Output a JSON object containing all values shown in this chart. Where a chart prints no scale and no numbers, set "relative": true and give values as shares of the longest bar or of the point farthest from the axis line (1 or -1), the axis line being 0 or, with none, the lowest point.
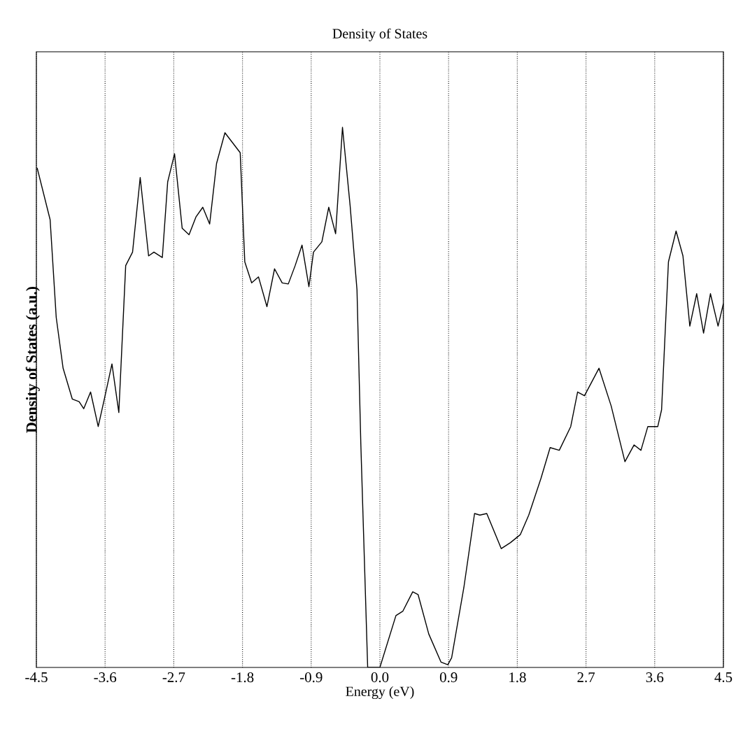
{
  "chart_data": {
    "type": "line",
    "title": "Density of States",
    "xlabel": "Energy (eV)",
    "ylabel": "Density of States (a.u.)",
    "relative": true,
    "grid": "x",
    "xlim": [
      -4.5,
      4.5
    ],
    "xticks": [
      -4.5,
      -3.6,
      -2.7,
      -1.8,
      -0.9,
      {
        "value": 0,
        "label": "0.0"
      },
      0.9,
      1.8,
      2.7,
      3.6,
      4.5
    ],
    "series": [
      {
        "color": "#000000",
        "x": [
          -4.49,
          -4.32,
          -4.24,
          -4.15,
          -4.03,
          -3.94,
          -3.88,
          -3.79,
          -3.69,
          -3.6,
          -3.51,
          -3.42,
          -3.33,
          -3.24,
          -3.14,
          -3.03,
          -2.96,
          -2.85,
          -2.78,
          -2.69,
          -2.59,
          -2.5,
          -2.41,
          -2.32,
          -2.23,
          -2.14,
          -2.03,
          -1.83,
          -1.77,
          -1.68,
          -1.59,
          -1.48,
          -1.38,
          -1.28,
          -1.2,
          -1.11,
          -1.02,
          -0.93,
          -0.87,
          -0.76,
          -0.67,
          -0.58,
          -0.49,
          -0.39,
          -0.3,
          -0.25,
          -0.16,
          0.0,
          0.21,
          0.3,
          0.43,
          0.5,
          0.64,
          0.8,
          0.89,
          0.94,
          1.1,
          1.24,
          1.31,
          1.4,
          1.59,
          1.71,
          1.84,
          1.95,
          2.11,
          2.23,
          2.35,
          2.5,
          2.59,
          2.68,
          2.87,
          3.03,
          3.21,
          3.33,
          3.42,
          3.51,
          3.64,
          3.69,
          3.78,
          3.88,
          3.97,
          4.06,
          4.15,
          4.24,
          4.33,
          4.43,
          4.5
        ],
        "values": [
          0.925,
          0.829,
          0.648,
          0.554,
          0.497,
          0.492,
          0.479,
          0.51,
          0.446,
          0.503,
          0.562,
          0.472,
          0.744,
          0.769,
          0.907,
          0.762,
          0.769,
          0.759,
          0.899,
          0.951,
          0.813,
          0.801,
          0.834,
          0.852,
          0.821,
          0.933,
          0.99,
          0.953,
          0.751,
          0.712,
          0.723,
          0.668,
          0.738,
          0.712,
          0.71,
          0.744,
          0.782,
          0.705,
          0.769,
          0.788,
          0.852,
          0.803,
          1.0,
          0.855,
          0.699,
          0.415,
          0.0,
          0.0,
          0.096,
          0.104,
          0.14,
          0.135,
          0.062,
          0.01,
          0.005,
          0.018,
          0.148,
          0.285,
          0.282,
          0.285,
          0.22,
          0.231,
          0.246,
          0.282,
          0.35,
          0.407,
          0.402,
          0.446,
          0.51,
          0.503,
          0.554,
          0.484,
          0.381,
          0.412,
          0.402,
          0.446,
          0.446,
          0.477,
          0.751,
          0.808,
          0.762,
          0.632,
          0.692,
          0.619,
          0.692,
          0.632,
          0.674
        ]
      }
    ]
  }
}
